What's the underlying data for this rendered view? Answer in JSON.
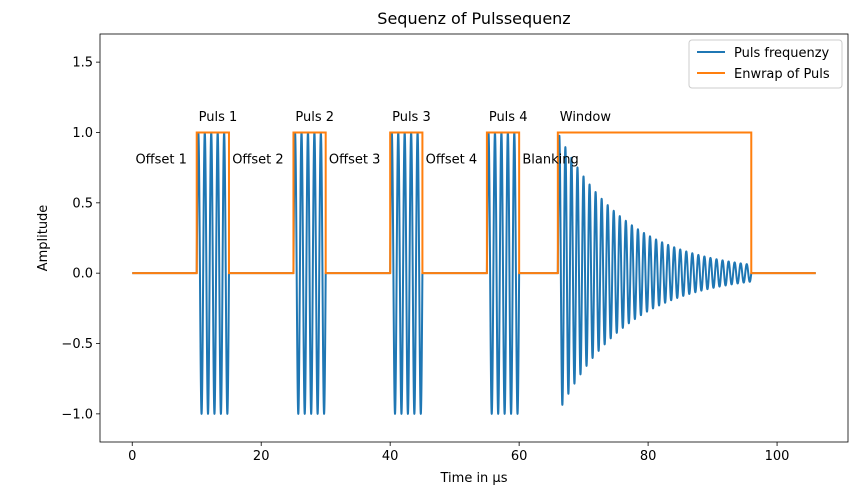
{
  "chart_data": {
    "type": "line",
    "title": "Sequenz of Pulssequenz",
    "xlabel": "Time in µs",
    "ylabel": "Amplitude",
    "xlim": [
      -5,
      111
    ],
    "ylim": [
      -1.2,
      1.7
    ],
    "x_ticks": [
      0,
      20,
      40,
      60,
      80,
      100
    ],
    "y_ticks": [
      -1.0,
      -0.5,
      0.0,
      0.5,
      1.0,
      1.5
    ],
    "x_tick_labels": [
      "0",
      "20",
      "40",
      "60",
      "80",
      "100"
    ],
    "y_tick_labels": [
      "−1.0",
      "−0.5",
      "0.0",
      "0.5",
      "1.0",
      "1.5"
    ],
    "grid": false,
    "legend_position": "top-right",
    "series": [
      {
        "name": "Puls frequenzy",
        "color": "#1f77b4",
        "pulses": [
          {
            "start": 10,
            "end": 15,
            "amplitude": 1.0,
            "cycles": 5
          },
          {
            "start": 25,
            "end": 30,
            "amplitude": 1.0,
            "cycles": 5
          },
          {
            "start": 40,
            "end": 45,
            "amplitude": 1.0,
            "cycles": 5
          },
          {
            "start": 55,
            "end": 60,
            "amplitude": 1.0,
            "cycles": 5
          }
        ],
        "decay": {
          "start": 66,
          "end": 96,
          "amplitude": 1.0,
          "cycles": 32,
          "final_amplitude": 0.06
        },
        "x_range": [
          0,
          106
        ]
      },
      {
        "name": "Enwrap of Puls",
        "color": "#ff7f0e",
        "x": [
          0,
          10,
          10,
          15,
          15,
          25,
          25,
          30,
          30,
          40,
          40,
          45,
          45,
          55,
          55,
          60,
          60,
          66,
          66,
          96,
          96,
          106
        ],
        "y": [
          0,
          0,
          1,
          1,
          0,
          0,
          1,
          1,
          0,
          0,
          1,
          1,
          0,
          0,
          1,
          1,
          0,
          0,
          1,
          1,
          0,
          0
        ]
      }
    ],
    "annotations": [
      {
        "text": "Puls 1",
        "x": 10.3,
        "y": 1.08
      },
      {
        "text": "Puls 2",
        "x": 25.3,
        "y": 1.08
      },
      {
        "text": "Puls 3",
        "x": 40.3,
        "y": 1.08
      },
      {
        "text": "Puls 4",
        "x": 55.3,
        "y": 1.08
      },
      {
        "text": "Window",
        "x": 66.3,
        "y": 1.08
      },
      {
        "text": "Offset 1",
        "x": 0.5,
        "y": 0.78
      },
      {
        "text": "Offset 2",
        "x": 15.5,
        "y": 0.78
      },
      {
        "text": "Offset 3",
        "x": 30.5,
        "y": 0.78
      },
      {
        "text": "Offset 4",
        "x": 45.5,
        "y": 0.78
      },
      {
        "text": "Blanking",
        "x": 60.5,
        "y": 0.78
      }
    ]
  }
}
